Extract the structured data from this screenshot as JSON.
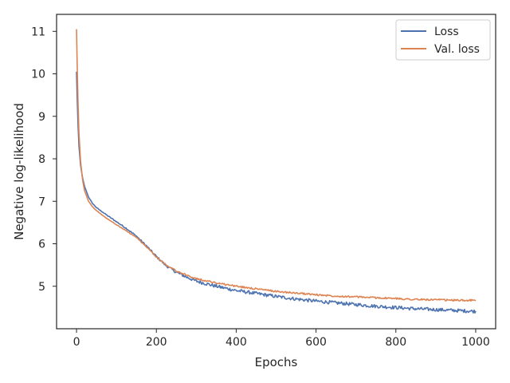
{
  "chart_data": {
    "type": "line",
    "title": "",
    "xlabel": "Epochs",
    "ylabel": "Negative log-likelihood",
    "xlim": [
      -50,
      1050
    ],
    "ylim": [
      4.0,
      11.4
    ],
    "xticks": [
      0,
      200,
      400,
      600,
      800,
      1000
    ],
    "yticks": [
      5,
      6,
      7,
      8,
      9,
      10,
      11
    ],
    "grid": false,
    "legend_position": "top-right",
    "series": [
      {
        "name": "Loss",
        "color": "#4c72b0",
        "noise_amplitude": 0.04,
        "points": [
          [
            0,
            10.05
          ],
          [
            3,
            9.0
          ],
          [
            6,
            8.3
          ],
          [
            10,
            7.85
          ],
          [
            15,
            7.55
          ],
          [
            20,
            7.35
          ],
          [
            30,
            7.1
          ],
          [
            40,
            6.95
          ],
          [
            50,
            6.85
          ],
          [
            75,
            6.68
          ],
          [
            100,
            6.52
          ],
          [
            125,
            6.36
          ],
          [
            150,
            6.18
          ],
          [
            175,
            5.95
          ],
          [
            200,
            5.7
          ],
          [
            225,
            5.48
          ],
          [
            250,
            5.33
          ],
          [
            275,
            5.22
          ],
          [
            300,
            5.12
          ],
          [
            350,
            5.0
          ],
          [
            400,
            4.9
          ],
          [
            450,
            4.83
          ],
          [
            500,
            4.76
          ],
          [
            550,
            4.7
          ],
          [
            600,
            4.65
          ],
          [
            650,
            4.61
          ],
          [
            700,
            4.57
          ],
          [
            750,
            4.53
          ],
          [
            800,
            4.5
          ],
          [
            850,
            4.47
          ],
          [
            900,
            4.45
          ],
          [
            950,
            4.43
          ],
          [
            1000,
            4.41
          ]
        ]
      },
      {
        "name": "Val. loss",
        "color": "#dd8452",
        "noise_amplitude": 0.02,
        "points": [
          [
            0,
            11.05
          ],
          [
            3,
            9.6
          ],
          [
            6,
            8.6
          ],
          [
            10,
            7.95
          ],
          [
            15,
            7.5
          ],
          [
            20,
            7.25
          ],
          [
            30,
            7.0
          ],
          [
            40,
            6.87
          ],
          [
            50,
            6.78
          ],
          [
            75,
            6.6
          ],
          [
            100,
            6.45
          ],
          [
            125,
            6.3
          ],
          [
            150,
            6.15
          ],
          [
            175,
            5.93
          ],
          [
            200,
            5.69
          ],
          [
            225,
            5.5
          ],
          [
            250,
            5.36
          ],
          [
            275,
            5.26
          ],
          [
            300,
            5.18
          ],
          [
            350,
            5.08
          ],
          [
            400,
            5.0
          ],
          [
            450,
            4.94
          ],
          [
            500,
            4.88
          ],
          [
            550,
            4.84
          ],
          [
            600,
            4.8
          ],
          [
            650,
            4.77
          ],
          [
            700,
            4.75
          ],
          [
            750,
            4.73
          ],
          [
            800,
            4.71
          ],
          [
            850,
            4.69
          ],
          [
            900,
            4.68
          ],
          [
            950,
            4.67
          ],
          [
            1000,
            4.67
          ]
        ]
      }
    ]
  }
}
